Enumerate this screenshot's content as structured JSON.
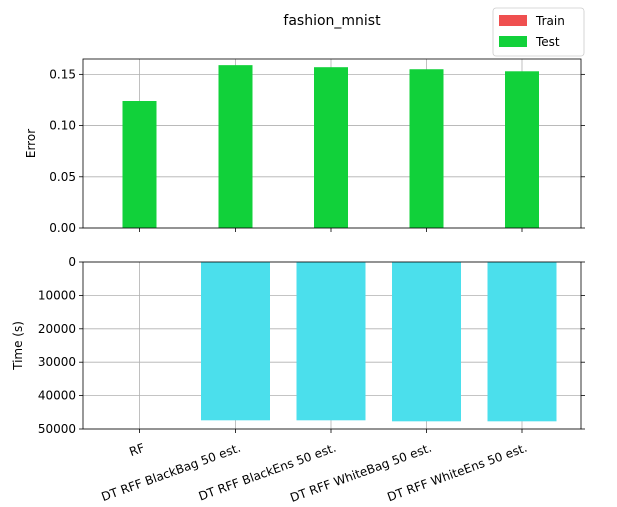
{
  "chart_data": [
    {
      "type": "bar",
      "title": "fashion_mnist",
      "ylabel": "Error",
      "ylim": [
        0,
        0.165
      ],
      "yticks": [
        0.0,
        0.05,
        0.1,
        0.15
      ],
      "ytick_labels": [
        "0.00",
        "0.05",
        "0.10",
        "0.15"
      ],
      "grid": true,
      "legend_position": "top-right",
      "categories": [
        "RF",
        "DT RFF BlackBag 50 est.",
        "DT RFF BlackEns 50 est.",
        "DT RFF WhiteBag 50 est.",
        "DT RFF WhiteEns 50 est."
      ],
      "series": [
        {
          "name": "Train",
          "color": "#ef4f4f",
          "values": [
            0,
            0,
            0,
            0,
            0
          ]
        },
        {
          "name": "Test",
          "color": "#11d13a",
          "values": [
            0.124,
            0.159,
            0.157,
            0.155,
            0.153
          ]
        }
      ]
    },
    {
      "type": "bar",
      "ylabel": "Time (s)",
      "ylim": [
        0,
        50000
      ],
      "y_inverted": true,
      "yticks": [
        0,
        10000,
        20000,
        30000,
        40000,
        50000
      ],
      "ytick_labels": [
        "0",
        "10000",
        "20000",
        "30000",
        "40000",
        "50000"
      ],
      "grid": true,
      "categories": [
        "RF",
        "DT RFF BlackBag 50 est.",
        "DT RFF BlackEns 50 est.",
        "DT RFF WhiteBag 50 est.",
        "DT RFF WhiteEns 50 est."
      ],
      "series": [
        {
          "color": "#4bdfec",
          "values": [
            0,
            47400,
            47400,
            47700,
            47700
          ]
        }
      ]
    }
  ]
}
